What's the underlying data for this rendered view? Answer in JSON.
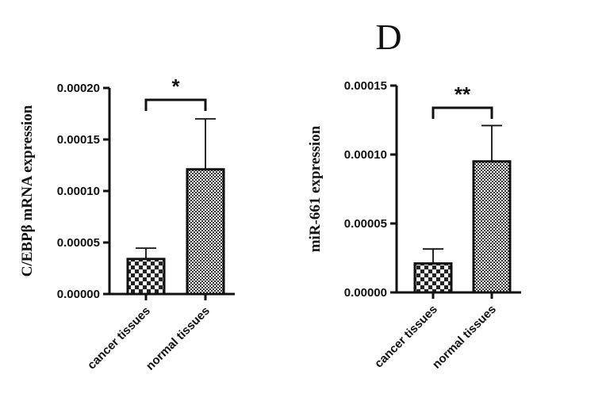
{
  "panel_label": "D",
  "chart_data": [
    {
      "type": "bar",
      "ylabel": "C/EBPβ mRNA expression",
      "categories": [
        "cancer tissues",
        "normal tissues"
      ],
      "values": [
        3.4e-05,
        0.000121
      ],
      "error_bars": [
        1.05e-05,
        4.9e-05
      ],
      "ylim": [
        0,
        0.0002
      ],
      "yticks": [
        0,
        5e-05,
        0.0001,
        0.00015,
        0.0002
      ],
      "ytick_labels": [
        "0.00000",
        "0.00005",
        "0.00010",
        "0.00015",
        "0.00020"
      ],
      "significance": "*",
      "bar_patterns": [
        "checker-large",
        "checker-fine"
      ],
      "colors": {
        "bar_stroke": "#111111",
        "dark": "#222222",
        "light": "#ffffff"
      }
    },
    {
      "type": "bar",
      "ylabel": "miR-661 expression",
      "categories": [
        "cancer tissues",
        "normal tissues"
      ],
      "values": [
        2.1e-05,
        9.5e-05
      ],
      "error_bars": [
        1.05e-05,
        2.6e-05
      ],
      "ylim": [
        0,
        0.00015
      ],
      "yticks": [
        0,
        5e-05,
        0.0001,
        0.00015
      ],
      "ytick_labels": [
        "0.00000",
        "0.00005",
        "0.00010",
        "0.00015"
      ],
      "significance": "**",
      "bar_patterns": [
        "checker-large",
        "checker-fine"
      ],
      "colors": {
        "bar_stroke": "#111111",
        "dark": "#222222",
        "light": "#ffffff"
      }
    }
  ]
}
